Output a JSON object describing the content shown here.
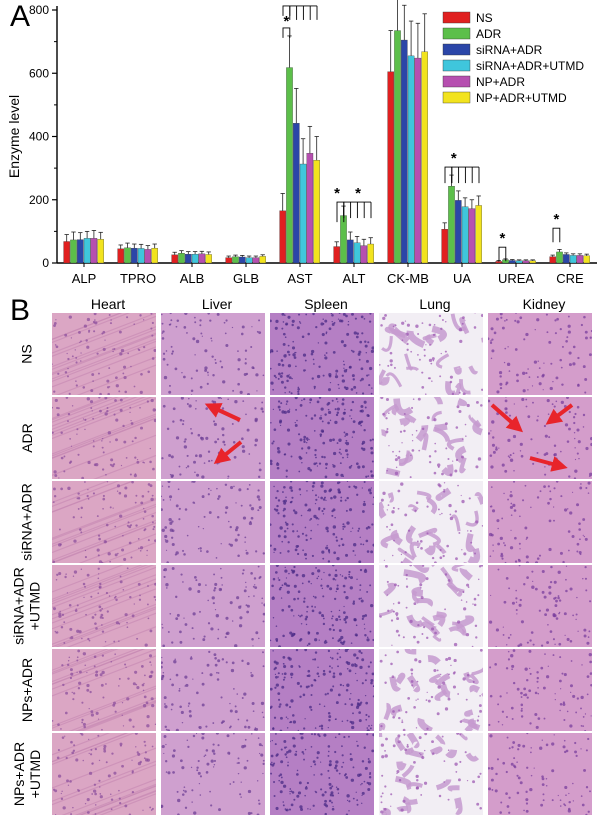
{
  "panels": {
    "a_label": "A",
    "b_label": "B"
  },
  "chart_data": {
    "type": "bar",
    "title": "",
    "xlabel": "",
    "ylabel": "Enzyme level",
    "ylim": [
      0,
      800
    ],
    "yticks": [
      0,
      200,
      400,
      600,
      800
    ],
    "categories": [
      "ALP",
      "TPRO",
      "ALB",
      "GLB",
      "AST",
      "ALT",
      "CK-MB",
      "UA",
      "UREA",
      "CRE"
    ],
    "legend_position": "top-right",
    "series": [
      {
        "name": "NS",
        "color": "#e02020",
        "values": [
          68,
          45,
          26,
          17,
          165,
          52,
          605,
          107,
          5,
          20
        ],
        "errors": [
          22,
          12,
          8,
          5,
          55,
          15,
          130,
          20,
          3,
          5
        ]
      },
      {
        "name": "ADR",
        "color": "#5cbf4a",
        "values": [
          73,
          48,
          31,
          20,
          618,
          150,
          735,
          243,
          10,
          35
        ],
        "errors": [
          25,
          15,
          8,
          5,
          100,
          30,
          150,
          35,
          3,
          8
        ]
      },
      {
        "name": "siRNA+ADR",
        "color": "#2b46a8",
        "values": [
          74,
          47,
          28,
          19,
          442,
          73,
          705,
          198,
          8,
          27
        ],
        "errors": [
          22,
          13,
          8,
          5,
          110,
          25,
          110,
          30,
          3,
          5
        ]
      },
      {
        "name": "siRNA+ADR+UTMD",
        "color": "#3fc6dc",
        "values": [
          78,
          46,
          28,
          17,
          313,
          64,
          655,
          178,
          7,
          24
        ],
        "errors": [
          22,
          13,
          8,
          5,
          80,
          20,
          110,
          28,
          3,
          5
        ]
      },
      {
        "name": "NP+ADR",
        "color": "#b64fb0",
        "values": [
          78,
          43,
          29,
          17,
          347,
          55,
          648,
          172,
          7,
          24
        ],
        "errors": [
          25,
          12,
          8,
          5,
          85,
          20,
          110,
          28,
          3,
          5
        ]
      },
      {
        "name": "NP+ADR+UTMD",
        "color": "#f2e31e",
        "values": [
          75,
          47,
          27,
          21,
          325,
          60,
          668,
          182,
          7,
          23
        ],
        "errors": [
          22,
          13,
          8,
          5,
          75,
          20,
          120,
          30,
          3,
          5
        ]
      }
    ],
    "significance_mark": "*"
  },
  "histology": {
    "columns": [
      "Heart",
      "Liver",
      "Spleen",
      "Lung",
      "Kidney"
    ],
    "rows": [
      "NS",
      "ADR",
      "siRNA+ADR",
      "siRNA+ADR\n+UTMD",
      "NPs+ADR",
      "NPs+ADR\n+UTMD"
    ],
    "tissue_colors": {
      "Heart": {
        "base": "#dba6c4",
        "spot": "#8c4f9e"
      },
      "Liver": {
        "base": "#cfa0cf",
        "spot": "#6d3f96"
      },
      "Spleen": {
        "base": "#b57fc4",
        "spot": "#4a2a86"
      },
      "Lung": {
        "base": "#f2eef4",
        "spot": "#9e5ab3"
      },
      "Kidney": {
        "base": "#d49dcb",
        "spot": "#7a3f9d"
      }
    },
    "arrow_color": "#e8242b"
  }
}
